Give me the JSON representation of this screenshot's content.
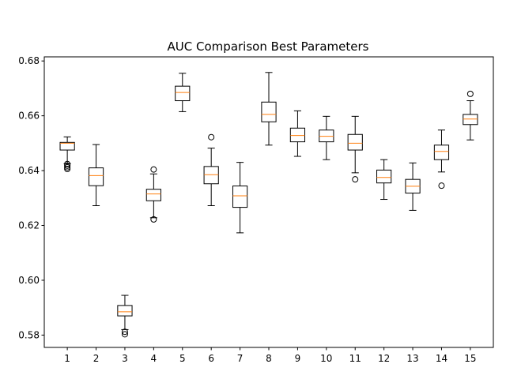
{
  "chart_data": {
    "type": "boxplot",
    "title": "AUC Comparison Best Parameters",
    "xlabel": "",
    "ylabel": "",
    "ylim": [
      0.5755,
      0.6815
    ],
    "yticks": [
      0.58,
      0.6,
      0.62,
      0.64,
      0.66,
      0.68
    ],
    "ytick_labels": [
      "0.58",
      "0.60",
      "0.62",
      "0.64",
      "0.66",
      "0.68"
    ],
    "categories": [
      "1",
      "2",
      "3",
      "4",
      "5",
      "6",
      "7",
      "8",
      "9",
      "10",
      "11",
      "12",
      "13",
      "14",
      "15"
    ],
    "box_color": "#000000",
    "median_color": "#ff7f0e",
    "grid": false,
    "boxes": [
      {
        "whislo": 0.6425,
        "q1": 0.6475,
        "med": 0.65,
        "q3": 0.6503,
        "whishi": 0.6523,
        "fliers": [
          0.6424,
          0.6418,
          0.6412,
          0.6406
        ]
      },
      {
        "whislo": 0.6272,
        "q1": 0.6345,
        "med": 0.6382,
        "q3": 0.641,
        "whishi": 0.6495,
        "fliers": []
      },
      {
        "whislo": 0.582,
        "q1": 0.587,
        "med": 0.5885,
        "q3": 0.5908,
        "whishi": 0.5945,
        "fliers": [
          0.5812,
          0.5803
        ]
      },
      {
        "whislo": 0.6228,
        "q1": 0.629,
        "med": 0.6315,
        "q3": 0.6332,
        "whishi": 0.6388,
        "fliers": [
          0.6404,
          0.6222
        ]
      },
      {
        "whislo": 0.6615,
        "q1": 0.6655,
        "med": 0.6685,
        "q3": 0.6708,
        "whishi": 0.6755,
        "fliers": []
      },
      {
        "whislo": 0.6272,
        "q1": 0.6352,
        "med": 0.6385,
        "q3": 0.6415,
        "whishi": 0.6482,
        "fliers": [
          0.6522
        ]
      },
      {
        "whislo": 0.6173,
        "q1": 0.6266,
        "med": 0.6308,
        "q3": 0.6344,
        "whishi": 0.643,
        "fliers": []
      },
      {
        "whislo": 0.6493,
        "q1": 0.6578,
        "med": 0.6605,
        "q3": 0.665,
        "whishi": 0.6758,
        "fliers": []
      },
      {
        "whislo": 0.6452,
        "q1": 0.6505,
        "med": 0.6528,
        "q3": 0.6555,
        "whishi": 0.6618,
        "fliers": []
      },
      {
        "whislo": 0.644,
        "q1": 0.6505,
        "med": 0.6525,
        "q3": 0.6548,
        "whishi": 0.6598,
        "fliers": []
      },
      {
        "whislo": 0.6392,
        "q1": 0.6475,
        "med": 0.65,
        "q3": 0.6532,
        "whishi": 0.6598,
        "fliers": [
          0.6368
        ]
      },
      {
        "whislo": 0.6295,
        "q1": 0.6355,
        "med": 0.6375,
        "q3": 0.6402,
        "whishi": 0.644,
        "fliers": []
      },
      {
        "whislo": 0.6255,
        "q1": 0.6318,
        "med": 0.6343,
        "q3": 0.6368,
        "whishi": 0.6428,
        "fliers": []
      },
      {
        "whislo": 0.6395,
        "q1": 0.644,
        "med": 0.647,
        "q3": 0.6493,
        "whishi": 0.6548,
        "fliers": [
          0.6345
        ]
      },
      {
        "whislo": 0.6512,
        "q1": 0.6568,
        "med": 0.6588,
        "q3": 0.6605,
        "whishi": 0.6655,
        "fliers": [
          0.668
        ]
      }
    ]
  }
}
